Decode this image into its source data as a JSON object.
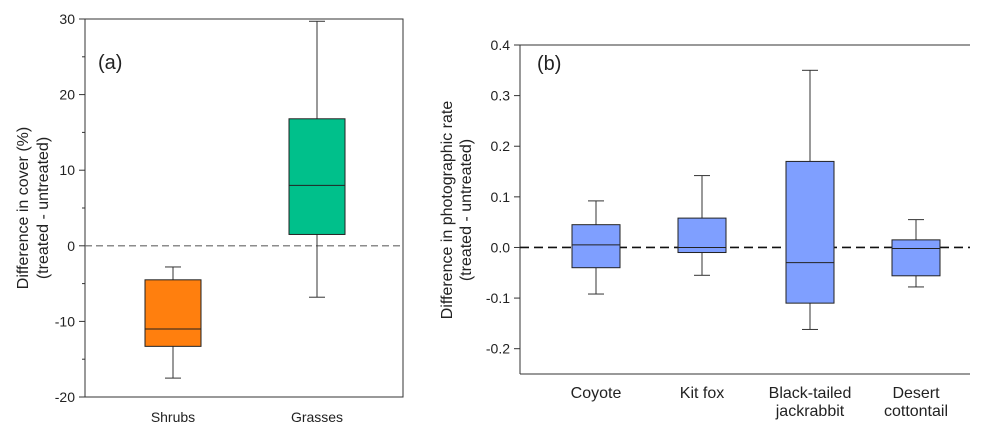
{
  "chart_data": [
    {
      "type": "box",
      "panel_label": "(a)",
      "ylabel_line1": "Difference in cover (%)",
      "ylabel_line2": "(treated - untreated)",
      "ylim": [
        -20,
        30
      ],
      "yticks": [
        -20,
        -10,
        0,
        10,
        20,
        30
      ],
      "reference_line": 0,
      "categories": [
        "Shrubs",
        "Grasses"
      ],
      "boxes": [
        {
          "label": "Shrubs",
          "whisker_low": -17.5,
          "q1": -13.3,
          "median": -11.0,
          "q3": -4.5,
          "whisker_high": -2.8,
          "color": "#ff7f0e"
        },
        {
          "label": "Grasses",
          "whisker_low": -6.8,
          "q1": 1.5,
          "median": 8.0,
          "q3": 16.8,
          "whisker_high": 29.7,
          "color": "#00c08b"
        }
      ]
    },
    {
      "type": "box",
      "panel_label": "(b)",
      "ylabel_line1": "Difference in photographic rate",
      "ylabel_line2": "(treated - untreated)",
      "ylim": [
        -0.25,
        0.4
      ],
      "yticks": [
        "-0.2",
        "-0.1",
        "0.0",
        "0.1",
        "0.2",
        "0.3",
        "0.4"
      ],
      "reference_line": 0,
      "categories": [
        [
          "Coyote"
        ],
        [
          "Kit fox"
        ],
        [
          "Black-tailed",
          "jackrabbit"
        ],
        [
          "Desert",
          "cottontail"
        ]
      ],
      "boxes": [
        {
          "label": "Coyote",
          "whisker_low": -0.092,
          "q1": -0.04,
          "median": 0.005,
          "q3": 0.045,
          "whisker_high": 0.092,
          "color": "#7f9fff"
        },
        {
          "label": "Kit fox",
          "whisker_low": -0.055,
          "q1": -0.01,
          "median": 0.0,
          "q3": 0.058,
          "whisker_high": 0.142,
          "color": "#7f9fff"
        },
        {
          "label": "Black-tailed jackrabbit",
          "whisker_low": -0.162,
          "q1": -0.11,
          "median": -0.03,
          "q3": 0.17,
          "whisker_high": 0.35,
          "color": "#7f9fff"
        },
        {
          "label": "Desert cottontail",
          "whisker_low": -0.078,
          "q1": -0.056,
          "median": -0.002,
          "q3": 0.015,
          "whisker_high": 0.055,
          "color": "#7f9fff"
        }
      ]
    }
  ]
}
